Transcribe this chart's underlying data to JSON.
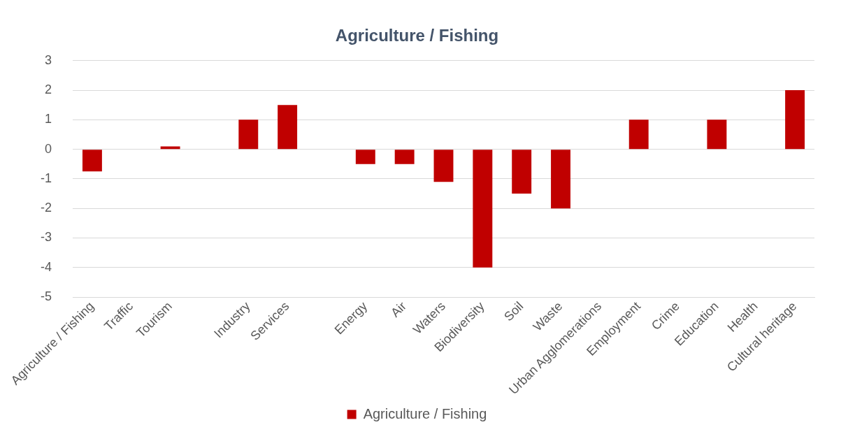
{
  "chart_data": {
    "type": "bar",
    "title": "Agriculture / Fishing",
    "categories": [
      "Agriculture / Fishing",
      "Traffic",
      "Tourism",
      null,
      "Industry",
      "Services",
      null,
      "Energy",
      "Air",
      "Waters",
      "Biodiversity",
      "Soil",
      "Waste",
      "Urban Agglomerations",
      "Employment",
      "Crime",
      "Education",
      "Health",
      "Cultural heritage"
    ],
    "series": [
      {
        "name": "Agriculture / Fishing",
        "color": "#c00000",
        "values": [
          -0.75,
          0,
          0.1,
          0,
          1,
          1.5,
          0,
          -0.5,
          -0.5,
          -1.1,
          -4,
          -1.5,
          -2,
          0,
          1,
          0,
          1,
          0,
          2
        ]
      }
    ],
    "ylim": [
      -5,
      3
    ],
    "yticks": [
      -5,
      -4,
      -3,
      -2,
      -1,
      0,
      1,
      2,
      3
    ],
    "grid": "y",
    "legend": "bottom"
  }
}
